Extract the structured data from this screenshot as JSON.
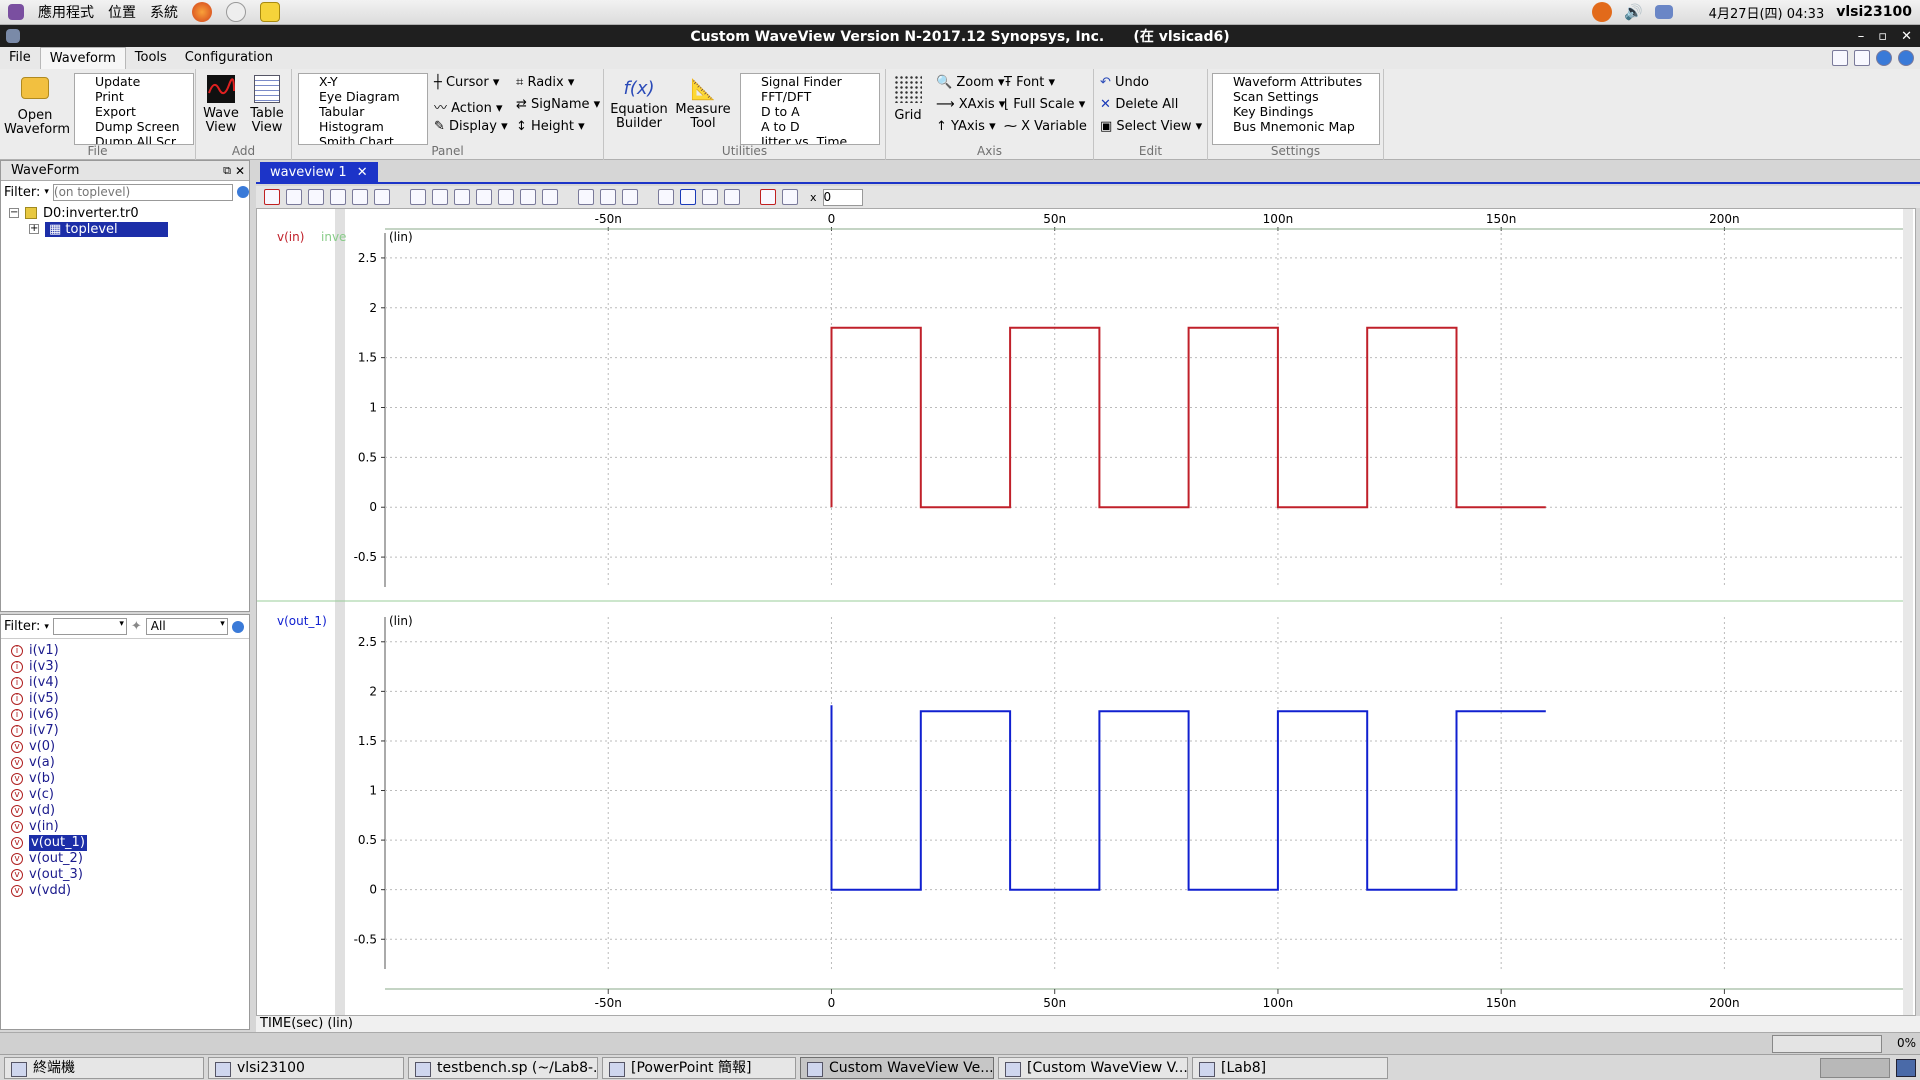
{
  "top_panel": {
    "menu": [
      "應用程式",
      "位置",
      "系統"
    ],
    "clock": "4月27日(四) 04:33",
    "user": "vlsi23100"
  },
  "window": {
    "title": "Custom WaveView Version N-2017.12 Synopsys, Inc.      (在 vlsicad6)"
  },
  "menubar": [
    "File",
    "Waveform",
    "Tools",
    "Configuration"
  ],
  "ribbon": {
    "file": {
      "label": "File",
      "open": [
        "Open",
        "Waveform"
      ],
      "items": [
        "Update",
        "Print",
        "Export",
        "Dump Screen",
        "Dump All Scr..."
      ]
    },
    "add": {
      "label": "Add",
      "wave_view": [
        "Wave",
        "View"
      ],
      "table_view": [
        "Table",
        "View"
      ]
    },
    "panel": {
      "label": "Panel",
      "items": [
        "X-Y",
        "Eye Diagram",
        "Tabular",
        "Histogram",
        "Smith Chart"
      ],
      "cursor": "Cursor",
      "action": "Action",
      "display": "Display",
      "radix": "Radix",
      "signame": "SigName",
      "height": "Height"
    },
    "utilities": {
      "label": "Utilities",
      "equation": [
        "Equation",
        "Builder"
      ],
      "measure": [
        "Measure",
        "Tool"
      ],
      "items": [
        "Signal Finder",
        "FFT/DFT",
        "D to A",
        "A to D",
        "Jitter vs. Time"
      ]
    },
    "axis": {
      "label": "Axis",
      "grid": "Grid",
      "zoom": "Zoom",
      "xaxis": "XAxis",
      "yaxis": "YAxis",
      "font": "Font",
      "fullscale": "Full Scale",
      "xvariable": "X Variable"
    },
    "edit": {
      "label": "Edit",
      "undo": "Undo",
      "delete_all": "Delete All",
      "select_view": "Select View"
    },
    "settings": {
      "label": "Settings",
      "items": [
        "Waveform Attributes",
        "Scan Settings",
        "Key Bindings",
        "Bus Mnemonic Map"
      ]
    }
  },
  "left_top": {
    "title": "WaveForm",
    "filter_label": "Filter:",
    "filter_placeholder": "(on toplevel)",
    "tree": [
      "D0:inverter.tr0",
      "toplevel"
    ]
  },
  "left_bottom": {
    "filter_label": "Filter:",
    "filter_value": "",
    "type_value": "All",
    "signals": [
      "i(v1)",
      "i(v3)",
      "i(v4)",
      "i(v5)",
      "i(v6)",
      "i(v7)",
      "v(0)",
      "v(a)",
      "v(b)",
      "v(c)",
      "v(d)",
      "v(in)",
      "v(out_1)",
      "v(out_2)",
      "v(out_3)",
      "v(vdd)"
    ],
    "selected": "v(out_1)"
  },
  "wave_tab": "waveview 1",
  "toolbar_input": "0",
  "chart_data": [
    {
      "type": "line",
      "name_label": "v(in)",
      "name_suffix": "inve",
      "scale_label": "(lin)",
      "color": "#c0202a",
      "x_unit": "s",
      "xlim": [
        -1e-07,
        2.4e-07
      ],
      "ylim": [
        -0.8,
        2.75
      ],
      "yticks": [
        "2.5",
        "2",
        "1.5",
        "1",
        "0.5",
        "0",
        "-0.5"
      ],
      "ytick_values": [
        2.5,
        2,
        1.5,
        1,
        0.5,
        0,
        -0.5
      ],
      "points": [
        [
          0,
          0
        ],
        [
          0,
          1.8
        ],
        [
          2e-08,
          1.8
        ],
        [
          2e-08,
          0
        ],
        [
          4e-08,
          0
        ],
        [
          4e-08,
          1.8
        ],
        [
          6e-08,
          1.8
        ],
        [
          6e-08,
          0
        ],
        [
          8e-08,
          0
        ],
        [
          8e-08,
          1.8
        ],
        [
          1e-07,
          1.8
        ],
        [
          1e-07,
          0
        ],
        [
          1.2e-07,
          0
        ],
        [
          1.2e-07,
          1.8
        ],
        [
          1.4e-07,
          1.8
        ],
        [
          1.4e-07,
          0
        ],
        [
          1.6e-07,
          0
        ]
      ]
    },
    {
      "type": "line",
      "name_label": "v(out_1)",
      "name_suffix": "",
      "scale_label": "(lin)",
      "color": "#1020d0",
      "x_unit": "s",
      "xlim": [
        -1e-07,
        2.4e-07
      ],
      "ylim": [
        -0.8,
        2.75
      ],
      "yticks": [
        "2.5",
        "2",
        "1.5",
        "1",
        "0.5",
        "0",
        "-0.5"
      ],
      "ytick_values": [
        2.5,
        2,
        1.5,
        1,
        0.5,
        0,
        -0.5
      ],
      "points": [
        [
          0,
          1.86
        ],
        [
          0,
          0
        ],
        [
          2e-08,
          0
        ],
        [
          2e-08,
          1.8
        ],
        [
          4e-08,
          1.8
        ],
        [
          4e-08,
          0
        ],
        [
          6e-08,
          0
        ],
        [
          6e-08,
          1.8
        ],
        [
          8e-08,
          1.8
        ],
        [
          8e-08,
          0
        ],
        [
          1e-07,
          0
        ],
        [
          1e-07,
          1.8
        ],
        [
          1.2e-07,
          1.8
        ],
        [
          1.2e-07,
          0
        ],
        [
          1.4e-07,
          0
        ],
        [
          1.4e-07,
          1.8
        ],
        [
          1.6e-07,
          1.8
        ]
      ]
    }
  ],
  "x_axis": {
    "ticks": [
      "-50n",
      "0",
      "50n",
      "100n",
      "150n",
      "200n"
    ],
    "tick_values": [
      -5e-08,
      0,
      5e-08,
      1e-07,
      1.5e-07,
      2e-07
    ],
    "label": "TIME(sec) (lin)"
  },
  "status": {
    "progress": "0%"
  },
  "taskbar": [
    "終端機",
    "vlsi23100",
    "testbench.sp (~/Lab8-...",
    "[PowerPoint 簡報]",
    "Custom WaveView Ve...",
    "[Custom WaveView V...",
    "[Lab8]"
  ]
}
